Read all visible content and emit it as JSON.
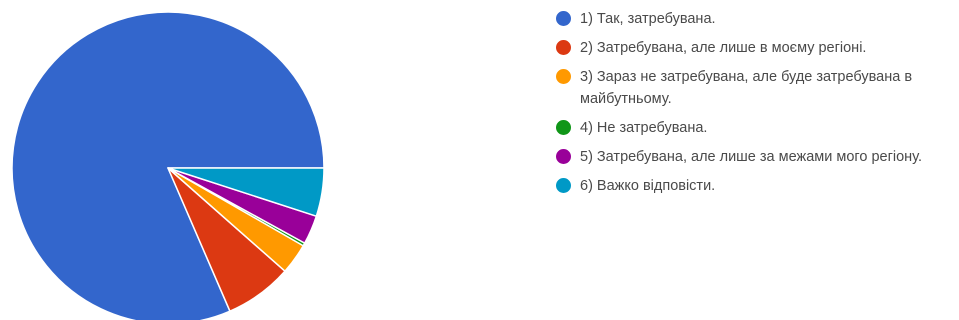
{
  "chart_data": {
    "type": "pie",
    "title": "",
    "legend_position": "right",
    "slices": [
      {
        "label": "1) Так, затребувана.",
        "value": 81.5,
        "color": "#3366cc"
      },
      {
        "label": "2) Затребувана, але лише в моєму регіоні.",
        "value": 7.0,
        "color": "#dc3912"
      },
      {
        "label": "3) Зараз не затребувана, але буде затребувана в майбутньому.",
        "value": 3.2,
        "color": "#ff9900"
      },
      {
        "label": "4) Не затребувана.",
        "value": 0.3,
        "color": "#109618"
      },
      {
        "label": "5) Затребувана, але лише за межами мого регіону.",
        "value": 3.0,
        "color": "#990099"
      },
      {
        "label": "6) Важко відповісти.",
        "value": 5.0,
        "color": "#0099c6"
      }
    ]
  }
}
